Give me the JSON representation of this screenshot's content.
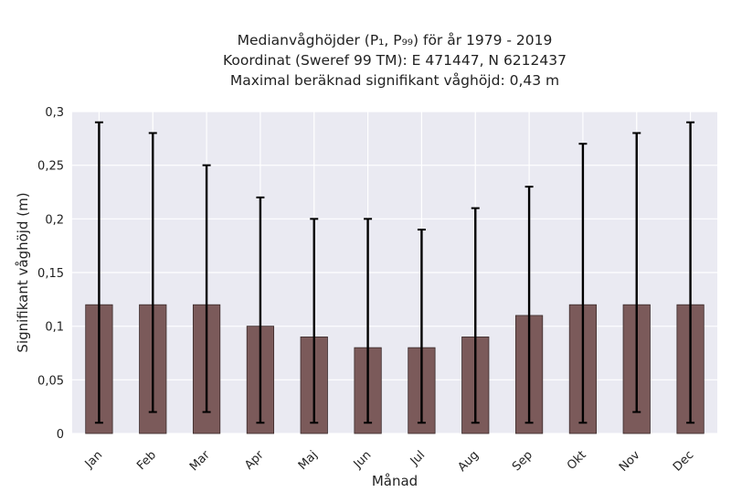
{
  "chart_data": {
    "type": "bar",
    "title_lines": [
      "Medianvåghöjder (P₁, P₉₉) för år 1979 - 2019",
      "Koordinat (Sweref 99 TM): E 471447, N 6212437",
      "Maximal beräknad signifikant våghöjd: 0,43 m"
    ],
    "xlabel": "Månad",
    "ylabel": "Signifikant våghöjd (m)",
    "categories": [
      "Jan",
      "Feb",
      "Mar",
      "Apr",
      "Maj",
      "Jun",
      "Jul",
      "Aug",
      "Sep",
      "Okt",
      "Nov",
      "Dec"
    ],
    "values": [
      0.12,
      0.12,
      0.12,
      0.1,
      0.09,
      0.08,
      0.08,
      0.09,
      0.11,
      0.12,
      0.12,
      0.12
    ],
    "p1": [
      0.01,
      0.02,
      0.02,
      0.01,
      0.01,
      0.01,
      0.01,
      0.01,
      0.01,
      0.01,
      0.02,
      0.01
    ],
    "p99": [
      0.29,
      0.28,
      0.25,
      0.22,
      0.2,
      0.2,
      0.19,
      0.21,
      0.23,
      0.27,
      0.28,
      0.29
    ],
    "ylim": [
      0,
      0.3
    ],
    "yticks": [
      0,
      0.05,
      0.1,
      0.15,
      0.2,
      0.25,
      0.3
    ],
    "ytick_labels": [
      "0",
      "0,05",
      "0,1",
      "0,15",
      "0,2",
      "0,25",
      "0,3"
    ],
    "grid": true,
    "colors": {
      "bar": "#7b5a5a",
      "bar_edge": "#3a2a2a",
      "error": "#000000",
      "plot_bg": "#eaeaf2",
      "grid": "#ffffff"
    }
  }
}
